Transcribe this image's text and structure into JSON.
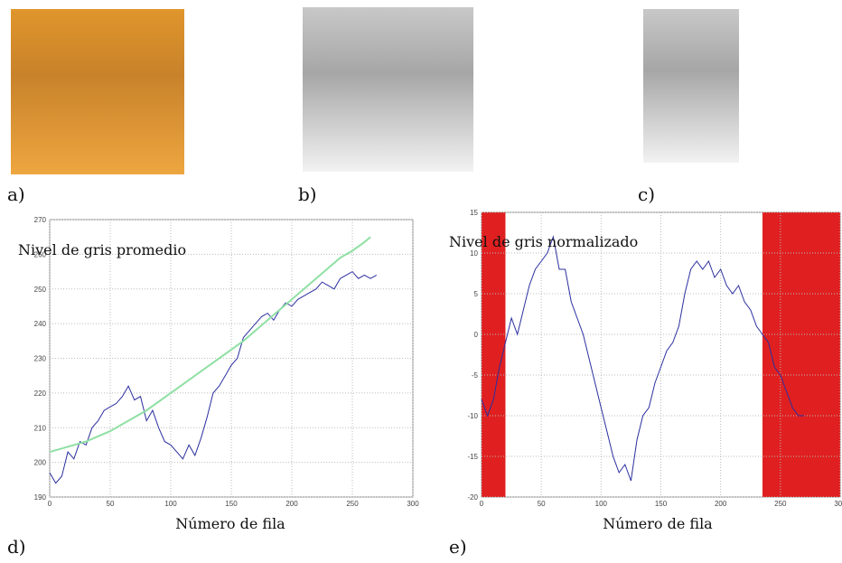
{
  "panel_labels": [
    "a)",
    "b)",
    "c)",
    "d)",
    "e)"
  ],
  "chart_data": [
    {
      "type": "line",
      "y_label": "Nivel de gris promedio",
      "x_label": "Número de fila",
      "xlim": [
        0,
        300
      ],
      "xticks": [
        0,
        50,
        100,
        150,
        200,
        250,
        300
      ],
      "ylim": [
        190,
        270
      ],
      "yticks": [
        190,
        200,
        210,
        220,
        230,
        240,
        250,
        260,
        270
      ],
      "grid": true,
      "series": [
        {
          "color": "#2b2fa0",
          "x": [
            0,
            5,
            10,
            15,
            20,
            25,
            30,
            35,
            40,
            45,
            50,
            55,
            60,
            65,
            70,
            75,
            80,
            85,
            90,
            95,
            100,
            105,
            110,
            115,
            120,
            125,
            130,
            135,
            140,
            145,
            150,
            155,
            160,
            165,
            170,
            175,
            180,
            185,
            190,
            195,
            200,
            205,
            210,
            215,
            220,
            225,
            230,
            235,
            240,
            245,
            250,
            255,
            260,
            265,
            270
          ],
          "values": [
            197,
            194,
            196,
            203,
            201,
            206,
            205,
            210,
            212,
            215,
            216,
            217,
            219,
            222,
            218,
            219,
            212,
            215,
            210,
            206,
            205,
            203,
            201,
            205,
            202,
            207,
            213,
            220,
            222,
            225,
            228,
            230,
            236,
            238,
            240,
            242,
            243,
            241,
            244,
            246,
            245,
            247,
            248,
            249,
            250,
            252,
            251,
            250,
            253,
            254,
            255,
            253,
            254,
            253,
            254
          ]
        },
        {
          "color": "#8fe0a4",
          "x": [
            0,
            10,
            20,
            30,
            40,
            50,
            60,
            70,
            80,
            90,
            100,
            110,
            120,
            130,
            140,
            150,
            160,
            170,
            180,
            190,
            200,
            210,
            220,
            230,
            240,
            250,
            260,
            265
          ],
          "values": [
            203,
            204,
            205,
            206,
            207.5,
            209,
            211,
            213,
            215,
            217.5,
            220,
            222.5,
            225,
            227.5,
            230,
            232.5,
            235,
            238,
            241,
            244,
            247,
            250,
            253,
            256,
            259,
            261,
            263.5,
            265
          ]
        }
      ]
    },
    {
      "type": "line",
      "y_label": "Nivel de gris normalizado",
      "x_label": "Número de fila",
      "xlim": [
        0,
        300
      ],
      "xticks": [
        0,
        50,
        100,
        150,
        200,
        250,
        300
      ],
      "ylim": [
        -20,
        15
      ],
      "yticks": [
        -20,
        -15,
        -10,
        -5,
        0,
        5,
        10,
        15
      ],
      "grid": true,
      "regions": [
        {
          "x0": 0,
          "x1": 20,
          "color": "#e02020"
        },
        {
          "x0": 235,
          "x1": 300,
          "color": "#e02020"
        }
      ],
      "series": [
        {
          "color": "#2b2fa0",
          "x": [
            0,
            5,
            10,
            15,
            20,
            25,
            30,
            35,
            40,
            45,
            50,
            55,
            60,
            65,
            70,
            75,
            80,
            85,
            90,
            95,
            100,
            105,
            110,
            115,
            120,
            125,
            130,
            135,
            140,
            145,
            150,
            155,
            160,
            165,
            170,
            175,
            180,
            185,
            190,
            195,
            200,
            205,
            210,
            215,
            220,
            225,
            230,
            235,
            240,
            245,
            250,
            255,
            260,
            265,
            270
          ],
          "values": [
            -8,
            -10,
            -8,
            -4,
            -1,
            2,
            0,
            3,
            6,
            8,
            9,
            10,
            12,
            8,
            8,
            4,
            2,
            0,
            -3,
            -6,
            -9,
            -12,
            -15,
            -17,
            -16,
            -18,
            -13,
            -10,
            -9,
            -6,
            -4,
            -2,
            -1,
            1,
            5,
            8,
            9,
            8,
            9,
            7,
            8,
            6,
            5,
            6,
            4,
            3,
            1,
            0,
            -1,
            -4,
            -5,
            -7,
            -9,
            -10,
            -10
          ]
        }
      ]
    }
  ]
}
